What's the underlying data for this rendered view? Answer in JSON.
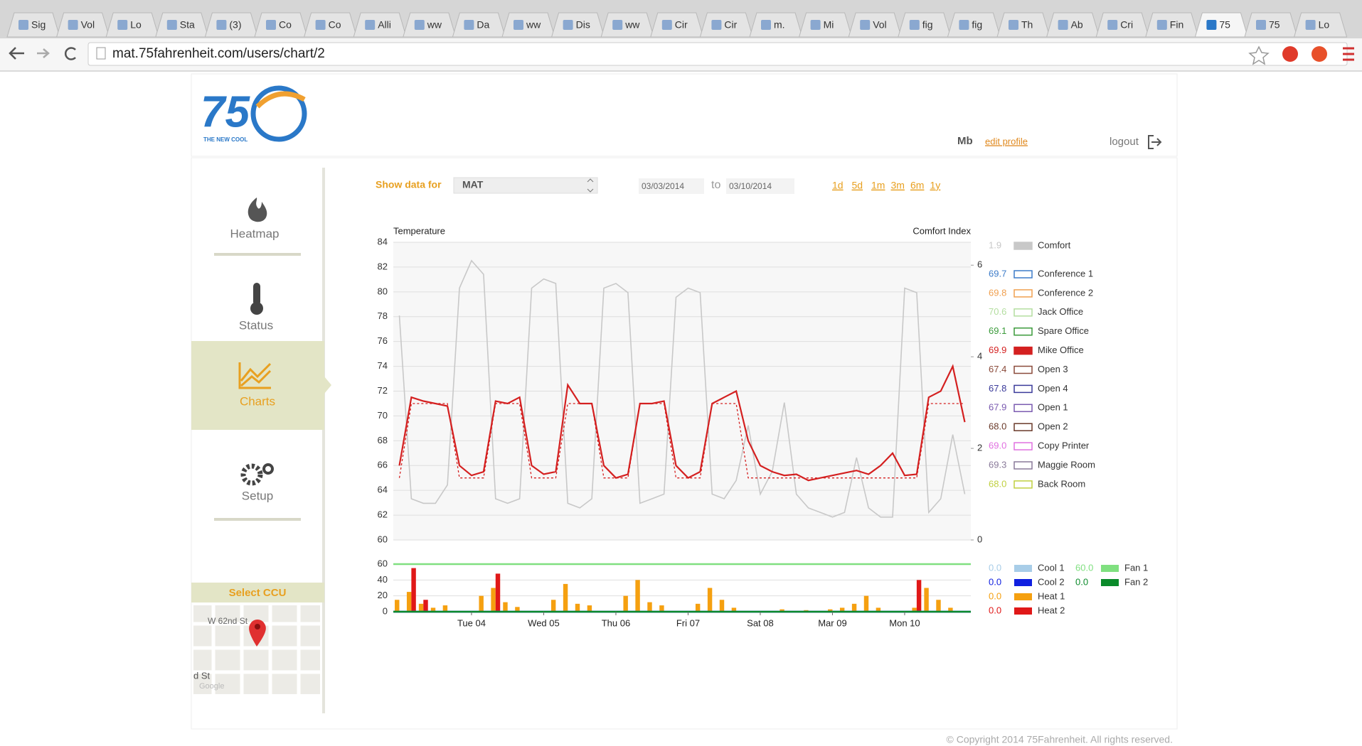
{
  "browser": {
    "tabs": [
      "Sig",
      "Vol",
      "Lo",
      "Sta",
      "(3)",
      "Co",
      "Co",
      "Alli",
      "ww",
      "Da",
      "ww",
      "Dis",
      "ww",
      "Cir",
      "Cir",
      "m.",
      "Mi",
      "Vol",
      "fig",
      "fig",
      "Th",
      "Ab",
      "Cri",
      "Fin",
      "75",
      "75",
      "Lo"
    ],
    "active_tab": 24,
    "url": "mat.75fahrenheit.com/users/chart/2"
  },
  "header": {
    "logo": "75",
    "tagline": "THE NEW COOL",
    "user": "Mb",
    "edit": "edit profile",
    "logout": "logout"
  },
  "nav": {
    "items": [
      "Heatmap",
      "Status",
      "Charts",
      "Setup"
    ],
    "select_ccu": "Select CCU",
    "map_street": "W 62nd St",
    "map_street2": "d St",
    "map_credit": "Google"
  },
  "controls": {
    "show_label": "Show data for",
    "selected": "MAT",
    "from": "03/03/2014",
    "to_word": "to",
    "to": "03/10/2014",
    "ranges": [
      "1d",
      "5d",
      "1m",
      "3m",
      "6m",
      "1y"
    ]
  },
  "chart_data": [
    {
      "type": "line",
      "ylabel": "Temperature",
      "y2label": "Comfort Index",
      "categories": [
        null,
        null,
        null,
        null,
        null,
        null,
        null,
        null,
        null,
        null,
        null,
        null,
        null,
        null,
        null,
        null,
        null,
        null,
        null,
        null,
        null,
        null,
        null,
        null,
        null,
        null,
        null,
        null,
        null,
        null,
        null,
        null,
        null,
        null,
        null,
        null,
        null,
        null,
        null,
        null,
        null,
        null,
        null,
        null,
        null,
        null,
        null,
        null
      ],
      "ylim": [
        60,
        84
      ],
      "yticks": [
        60,
        62,
        64,
        66,
        68,
        70,
        72,
        74,
        76,
        78,
        80,
        82,
        84
      ],
      "y2lim": [
        0,
        6.5
      ],
      "y2ticks": [
        0,
        2,
        4,
        6
      ],
      "grid": true,
      "series": [
        {
          "name": "Comfort",
          "color": "#c8c8c8",
          "readout": "1.9",
          "filled": true,
          "axis": "y2",
          "values": [
            4.9,
            0.9,
            0.8,
            0.8,
            1.2,
            5.5,
            6.1,
            5.8,
            0.9,
            0.8,
            0.9,
            5.5,
            5.7,
            5.6,
            0.8,
            0.7,
            0.9,
            5.5,
            5.6,
            5.4,
            0.8,
            0.9,
            1.0,
            5.3,
            5.5,
            5.4,
            1.0,
            0.9,
            1.3,
            2.5,
            1.0,
            1.5,
            3.0,
            1.0,
            0.7,
            0.6,
            0.5,
            0.6,
            1.8,
            0.7,
            0.5,
            0.5,
            5.5,
            5.4,
            0.6,
            0.9,
            2.3,
            1.0
          ]
        },
        {
          "name": "Conference 1",
          "color": "#3d7cc9",
          "readout": "69.7"
        },
        {
          "name": "Conference 2",
          "color": "#f0a050",
          "readout": "69.8"
        },
        {
          "name": "Jack Office",
          "color": "#b4dea0",
          "readout": "70.6"
        },
        {
          "name": "Spare Office",
          "color": "#3a9a3a",
          "readout": "69.1"
        },
        {
          "name": "Mike Office",
          "color": "#d42020",
          "readout": "69.9",
          "filled": true,
          "values": [
            66,
            71.5,
            71.2,
            71,
            70.8,
            66,
            65.2,
            65.5,
            71.2,
            71,
            71.5,
            66,
            65.3,
            65.5,
            72.5,
            71,
            71,
            66,
            65,
            65.3,
            71,
            71,
            71.2,
            66,
            65,
            65.5,
            71,
            71.5,
            72,
            68,
            66,
            65.5,
            65.2,
            65.3,
            64.8,
            65,
            65.2,
            65.4,
            65.6,
            65.3,
            66,
            67,
            65.2,
            65.3,
            71.5,
            72,
            74,
            69.5
          ]
        },
        {
          "name": "Open 3",
          "color": "#8a4a3a",
          "readout": "67.4"
        },
        {
          "name": "Open 4",
          "color": "#3a3a9a",
          "readout": "67.8"
        },
        {
          "name": "Open 1",
          "color": "#7a5ab0",
          "readout": "67.9"
        },
        {
          "name": "Open 2",
          "color": "#6a3a2a",
          "readout": "68.0"
        },
        {
          "name": "Copy Printer",
          "color": "#e070e0",
          "readout": "69.0"
        },
        {
          "name": "Maggie Room",
          "color": "#8a7a9a",
          "readout": "69.3"
        },
        {
          "name": "Back Room",
          "color": "#c0d040",
          "readout": "68.0"
        },
        {
          "color": "#d42020",
          "dashed": true,
          "values": [
            65,
            71,
            71,
            71,
            71,
            65,
            65,
            65,
            71,
            71,
            71,
            65,
            65,
            65,
            71,
            71,
            71,
            65,
            65,
            65,
            71,
            71,
            71,
            65,
            65,
            65,
            71,
            71,
            71,
            65,
            65,
            65,
            65,
            65,
            65,
            65,
            65,
            65,
            65,
            65,
            65,
            65,
            65,
            65,
            71,
            71,
            71,
            71
          ]
        }
      ]
    },
    {
      "type": "bar",
      "categories": [
        null,
        null,
        null,
        null,
        null,
        null,
        "Tue 04",
        null,
        null,
        null,
        null,
        null,
        "Wed 05",
        null,
        null,
        null,
        null,
        null,
        "Thu 06",
        null,
        null,
        null,
        null,
        null,
        "Fri 07",
        null,
        null,
        null,
        null,
        null,
        "Sat 08",
        null,
        null,
        null,
        null,
        null,
        "Mar 09",
        null,
        null,
        null,
        null,
        null,
        "Mon 10",
        null,
        null,
        null,
        null,
        null
      ],
      "ylim": [
        0,
        60
      ],
      "yticks": [
        0,
        20,
        40,
        60
      ],
      "grid": true,
      "series": [
        {
          "name": "Cool 1",
          "color": "#a8cde8",
          "readout": "0.0",
          "level": 0
        },
        {
          "name": "Cool 2",
          "color": "#1020e0",
          "readout": "0.0",
          "level": 0
        },
        {
          "name": "Heat 1",
          "color": "#f5a010",
          "readout": "0.0",
          "values": [
            15,
            25,
            10,
            5,
            8,
            0,
            0,
            20,
            30,
            12,
            6,
            0,
            0,
            15,
            35,
            10,
            8,
            0,
            0,
            20,
            40,
            12,
            8,
            0,
            0,
            10,
            30,
            15,
            5,
            0,
            0,
            0,
            3,
            0,
            2,
            0,
            3,
            5,
            10,
            20,
            5,
            0,
            0,
            5,
            30,
            15,
            5,
            0
          ]
        },
        {
          "name": "Heat 2",
          "color": "#e01818",
          "readout": "0.0",
          "values": [
            0,
            55,
            15,
            0,
            0,
            0,
            0,
            0,
            48,
            0,
            0,
            0,
            0,
            0,
            0,
            0,
            0,
            0,
            0,
            0,
            0,
            0,
            0,
            0,
            0,
            0,
            0,
            0,
            0,
            0,
            0,
            0,
            0,
            0,
            0,
            0,
            0,
            0,
            0,
            0,
            0,
            0,
            0,
            40,
            0,
            0,
            0,
            0
          ]
        },
        {
          "name": "Fan 1",
          "color": "#80e080",
          "readout": "60.0",
          "level": 60
        },
        {
          "name": "Fan 2",
          "color": "#0a8a2a",
          "readout": "0.0",
          "level": 0
        }
      ]
    }
  ],
  "footer": "© Copyright 2014 75Fahrenheit. All rights reserved."
}
